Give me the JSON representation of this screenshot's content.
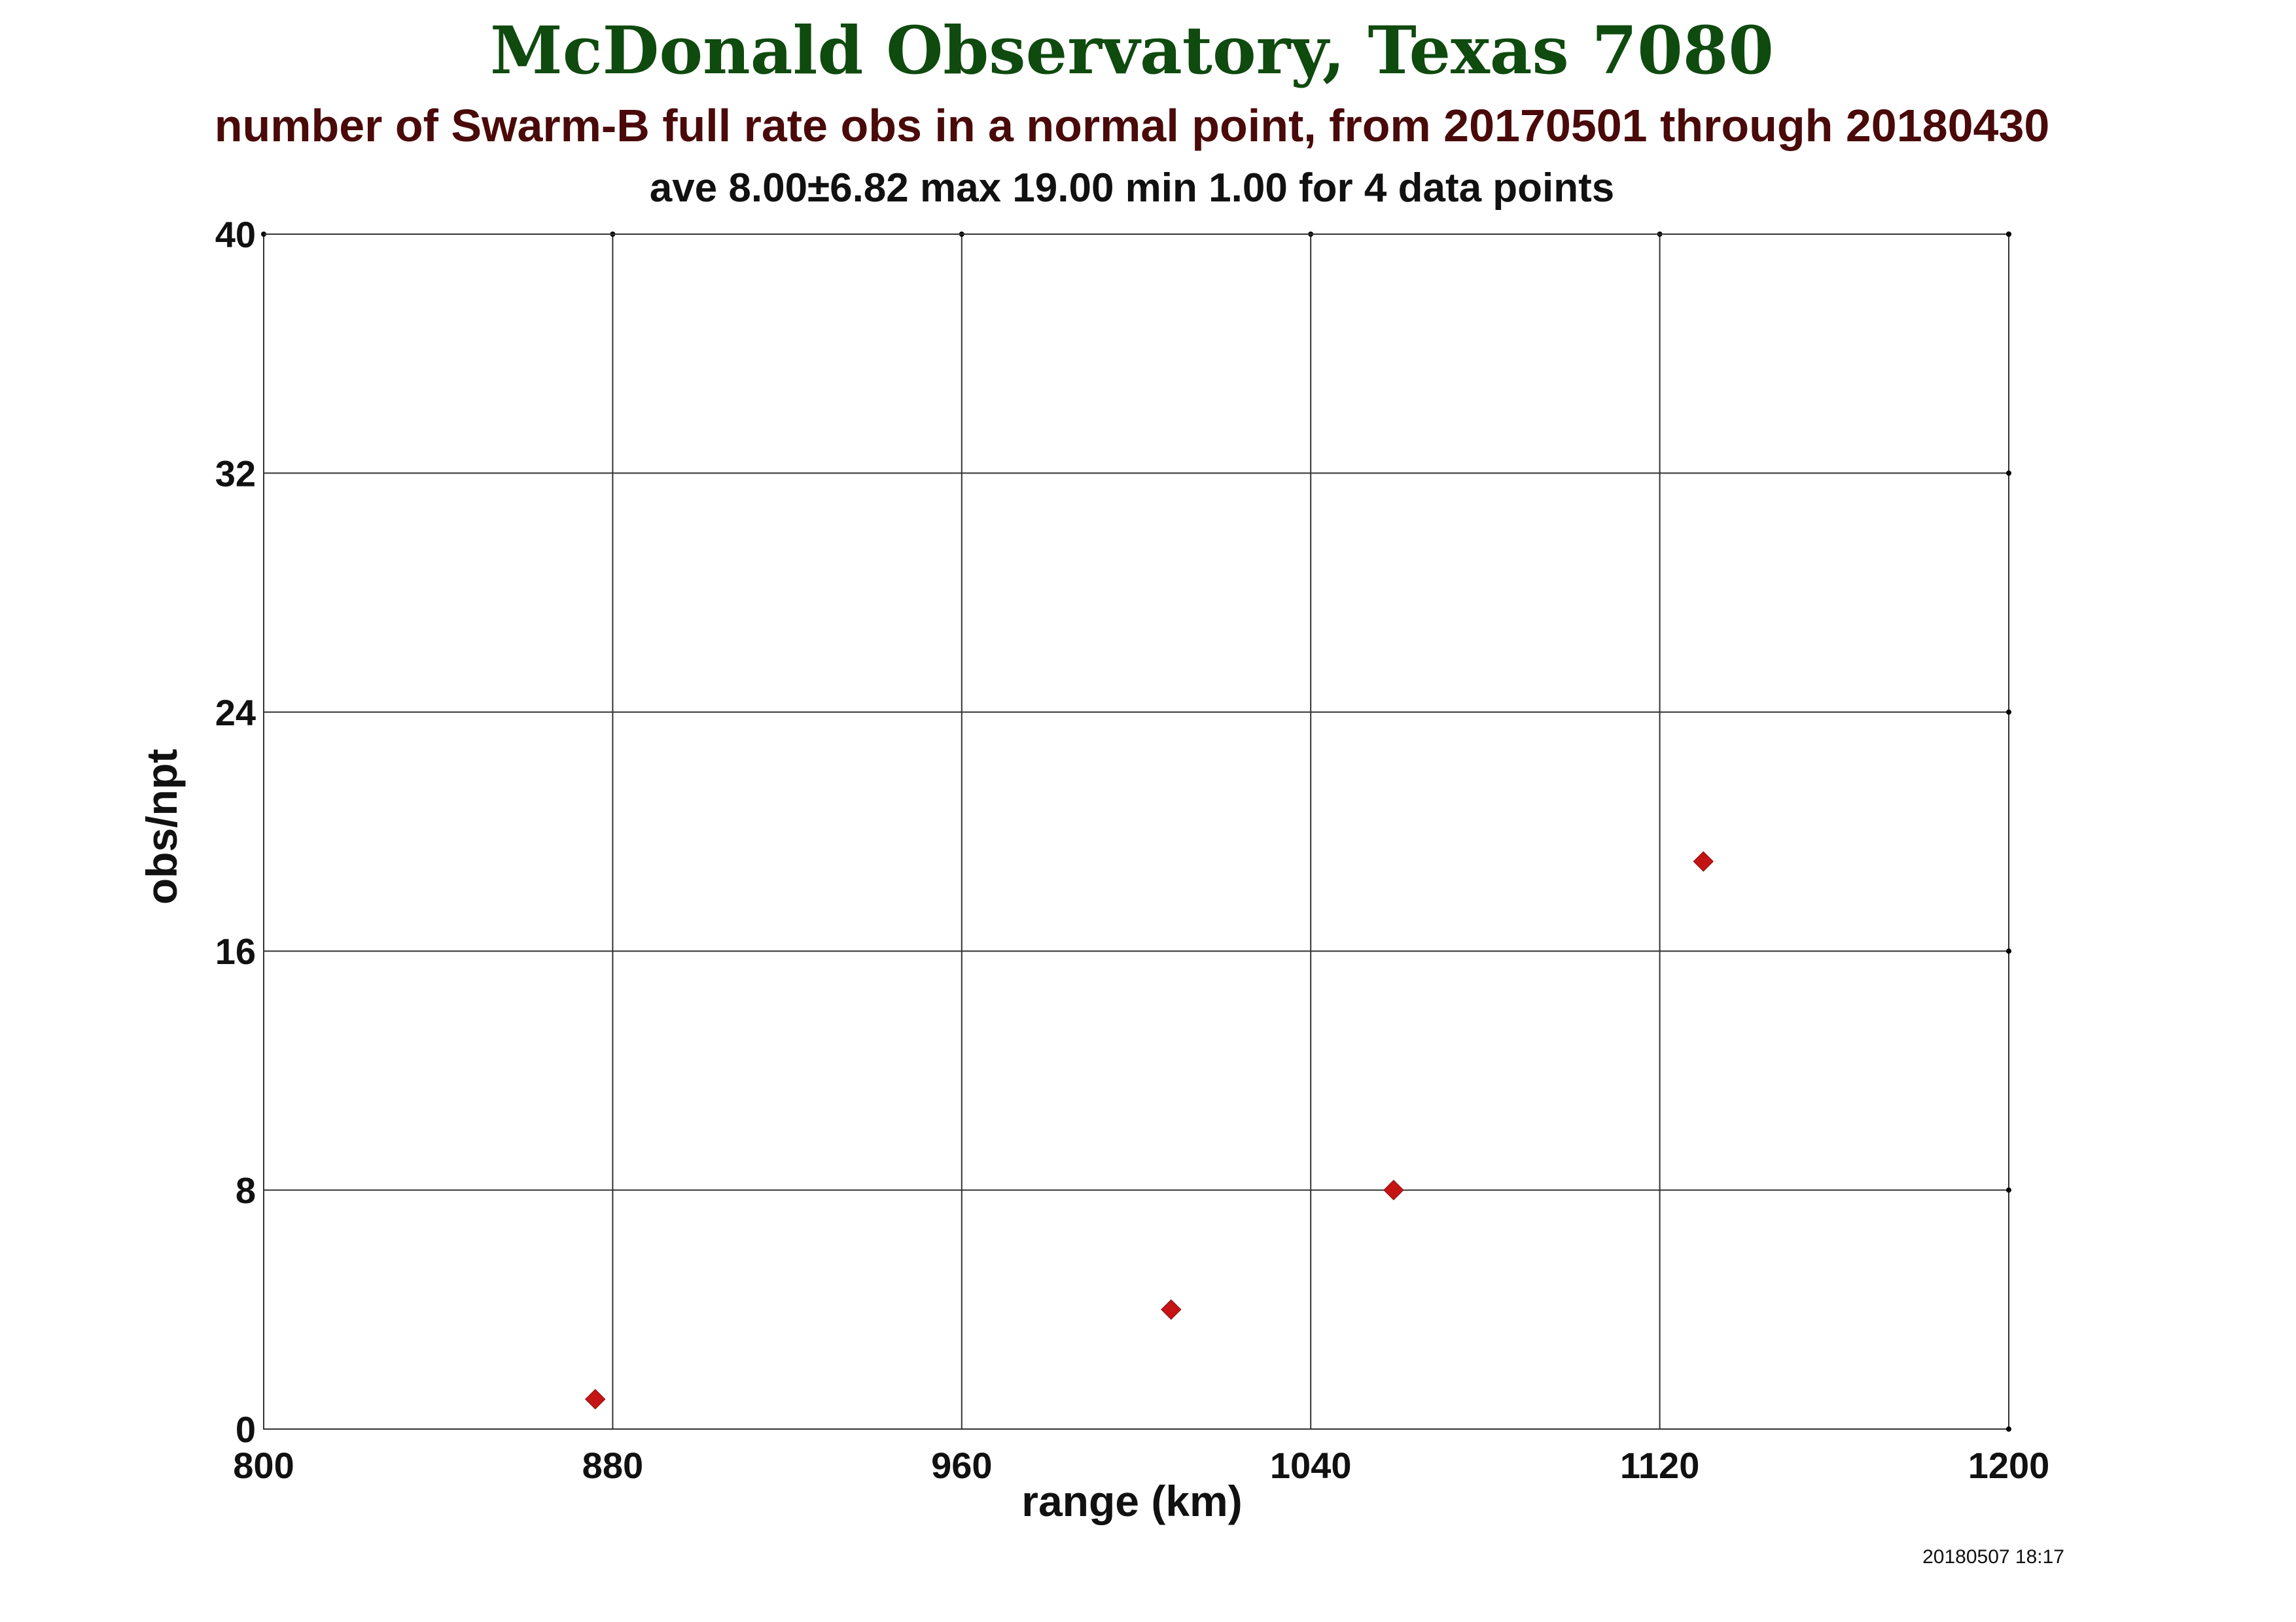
{
  "colors": {
    "title": "#0f4a0f",
    "subtitle": "#4a0a0a",
    "text": "#111111",
    "grid": "#333333",
    "marker": "#c41414"
  },
  "chart_data": {
    "type": "scatter",
    "title": "McDonald Observatory, Texas 7080",
    "subtitle": "number of Swarm-B full rate obs in a normal point, from 20170501 through 20180430",
    "stats": "ave 8.00±6.82 max 19.00 min 1.00 for 4 data points",
    "xlabel": "range (km)",
    "ylabel": "obs/npt",
    "xlim": [
      800,
      1200
    ],
    "ylim": [
      0,
      40
    ],
    "xticks": [
      800,
      880,
      960,
      1040,
      1120,
      1200
    ],
    "yticks": [
      0,
      8,
      16,
      24,
      32,
      40
    ],
    "grid": true,
    "marker": "diamond",
    "points": [
      {
        "x": 876,
        "y": 1
      },
      {
        "x": 1008,
        "y": 4
      },
      {
        "x": 1059,
        "y": 8
      },
      {
        "x": 1130,
        "y": 19
      }
    ],
    "timestamp": "20180507 18:17"
  }
}
